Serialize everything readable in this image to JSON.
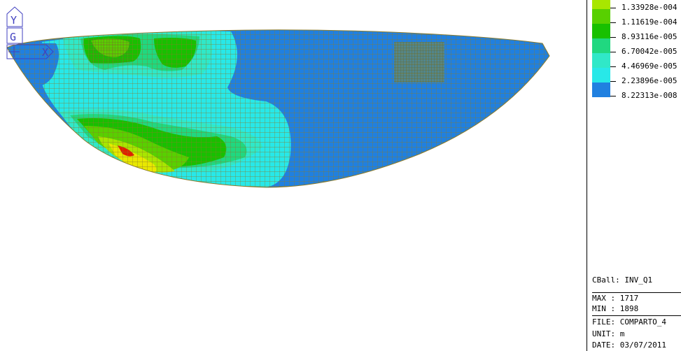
{
  "legend": {
    "levels": [
      {
        "label": "1.33928e-004",
        "color": "#a8e600"
      },
      {
        "label": "1.11619e-004",
        "color": "#58d000"
      },
      {
        "label": "8.93116e-005",
        "color": "#18c000"
      },
      {
        "label": "6.70042e-005",
        "color": "#20d880"
      },
      {
        "label": "4.46969e-005",
        "color": "#30e8c8"
      },
      {
        "label": "2.23896e-005",
        "color": "#28e8e8"
      },
      {
        "label": "8.22313e-008",
        "color": "#2080e0"
      }
    ]
  },
  "info": {
    "cball": "CBall: INV_Q1",
    "max": "MAX : 1717",
    "min": "MIN : 1898",
    "file": "FILE: COMPARTO_4",
    "unit": "UNIT: m",
    "date": "DATE: 03/07/2011"
  },
  "axis": {
    "y_label": "Y",
    "g_label": "G",
    "x_label": "X"
  },
  "colors": {
    "mesh_line": "#8a7a2a",
    "deep_blue": "#2080e0",
    "cyan": "#28e8e8",
    "green": "#18c000",
    "yellow": "#e8e800",
    "red": "#e02000",
    "axis_color": "#4040c0"
  }
}
